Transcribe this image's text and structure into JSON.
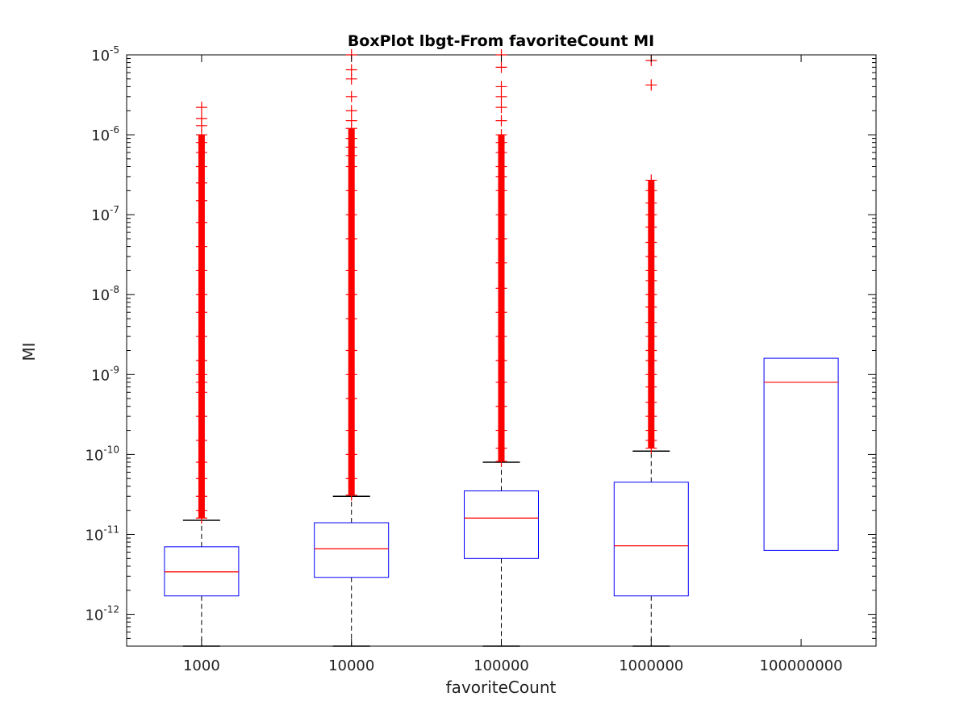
{
  "chart_data": {
    "type": "box",
    "title": "BoxPlot lbgt-From favoriteCount MI",
    "xlabel": "favoriteCount",
    "ylabel": "MI",
    "yscale": "log",
    "ylim": [
      4e-13,
      1e-05
    ],
    "yticks": [
      {
        "value": 1e-12,
        "base": "10",
        "exp": "-12"
      },
      {
        "value": 1e-11,
        "base": "10",
        "exp": "-11"
      },
      {
        "value": 1e-10,
        "base": "10",
        "exp": "-10"
      },
      {
        "value": 1e-09,
        "base": "10",
        "exp": "-9"
      },
      {
        "value": 1e-08,
        "base": "10",
        "exp": "-8"
      },
      {
        "value": 1e-07,
        "base": "10",
        "exp": "-7"
      },
      {
        "value": 1e-06,
        "base": "10",
        "exp": "-6"
      },
      {
        "value": 1e-05,
        "base": "10",
        "exp": "-5"
      }
    ],
    "categories": [
      "1000",
      "10000",
      "100000",
      "1000000",
      "100000000"
    ],
    "boxes": [
      {
        "category": "1000",
        "whisker_low": 4e-13,
        "q1": 1.7e-12,
        "median": 3.4e-12,
        "q3": 7e-12,
        "whisker_high": 1.5e-11,
        "outliers": [
          1.6e-11,
          2e-11,
          3e-11,
          5e-11,
          8e-11,
          1.5e-10,
          3e-10,
          6e-10,
          8e-10,
          1e-09,
          1.5e-09,
          3e-09,
          6e-09,
          1e-08,
          2e-08,
          4e-08,
          8e-08,
          1.5e-07,
          2.5e-07,
          4e-07,
          6e-07,
          8e-07,
          1e-06,
          1.3e-06,
          1.6e-06,
          2.2e-06
        ]
      },
      {
        "category": "10000",
        "whisker_low": 4e-13,
        "q1": 2.9e-12,
        "median": 6.6e-12,
        "q3": 1.4e-11,
        "whisker_high": 3e-11,
        "outliers": [
          3.1e-11,
          5e-11,
          1e-10,
          2e-10,
          5e-10,
          1e-09,
          2e-09,
          5e-09,
          1e-08,
          2e-08,
          5e-08,
          1e-07,
          2e-07,
          4e-07,
          5.5e-07,
          7e-07,
          9e-07,
          1.2e-06,
          1.5e-06,
          2e-06,
          3e-06,
          5e-06,
          6.5e-06,
          1e-05
        ]
      },
      {
        "category": "100000",
        "whisker_low": 4e-13,
        "q1": 5e-12,
        "median": 1.6e-11,
        "q3": 3.5e-11,
        "whisker_high": 8e-11,
        "outliers": [
          8.2e-11,
          1.2e-10,
          2e-10,
          4e-10,
          8e-10,
          1.5e-09,
          3e-09,
          6e-09,
          1.2e-08,
          2.5e-08,
          5e-08,
          1e-07,
          2e-07,
          3e-07,
          4e-07,
          6e-07,
          8e-07,
          1e-06,
          1.5e-06,
          2.2e-06,
          3e-06,
          4e-06,
          7e-06,
          1e-05
        ]
      },
      {
        "category": "1000000",
        "whisker_low": 4e-13,
        "q1": 1.7e-12,
        "median": 7.2e-12,
        "q3": 4.5e-11,
        "whisker_high": 1.1e-10,
        "outliers": [
          1.2e-10,
          1.5e-10,
          2e-10,
          3e-10,
          4.5e-10,
          7e-10,
          1e-09,
          1.5e-09,
          2e-09,
          3e-09,
          4.5e-09,
          7e-09,
          1e-08,
          1.5e-08,
          2e-08,
          3e-08,
          4.5e-08,
          7e-08,
          1e-07,
          1.4e-07,
          2e-07,
          2.7e-07,
          4.2e-06,
          8.5e-06
        ]
      },
      {
        "category": "100000000",
        "whisker_low": 6.3e-12,
        "q1": 6.3e-12,
        "median": 8e-10,
        "q3": 1.6e-09,
        "whisker_high": 1.6e-09,
        "outliers": []
      }
    ],
    "colors": {
      "box": "#0000ff",
      "median": "#ff0000",
      "whisker": "#000000",
      "outlier": "#ff0000"
    },
    "grid": false,
    "legend": "none"
  }
}
